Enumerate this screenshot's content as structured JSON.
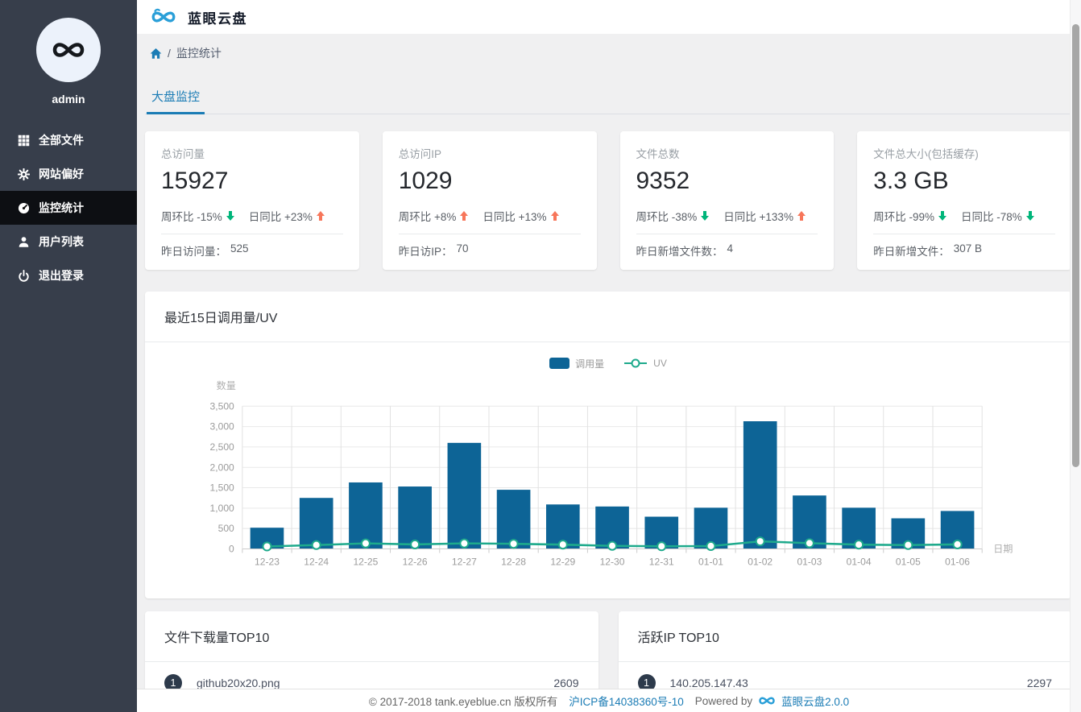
{
  "app": {
    "title": "蓝眼云盘",
    "username": "admin"
  },
  "sidebar": {
    "items": [
      {
        "label": "全部文件",
        "icon": "grid-icon",
        "active": false
      },
      {
        "label": "网站偏好",
        "icon": "gear-icon",
        "active": false
      },
      {
        "label": "监控统计",
        "icon": "dashboard-icon",
        "active": true
      },
      {
        "label": "用户列表",
        "icon": "user-icon",
        "active": false
      },
      {
        "label": "退出登录",
        "icon": "power-icon",
        "active": false
      }
    ]
  },
  "breadcrumb": {
    "separator": "/",
    "current": "监控统计"
  },
  "tabs": [
    {
      "label": "大盘监控",
      "active": true
    }
  ],
  "stat_cards": [
    {
      "label": "总访问量",
      "value": "15927",
      "wow": {
        "label": "周环比",
        "value": "-15%",
        "dir": "down"
      },
      "dod": {
        "label": "日同比",
        "value": "+23%",
        "dir": "up"
      },
      "footer_label": "昨日访问量：",
      "footer_value": "525"
    },
    {
      "label": "总访问IP",
      "value": "1029",
      "wow": {
        "label": "周环比",
        "value": "+8%",
        "dir": "up"
      },
      "dod": {
        "label": "日同比",
        "value": "+13%",
        "dir": "up"
      },
      "footer_label": "昨日访IP：",
      "footer_value": "70"
    },
    {
      "label": "文件总数",
      "value": "9352",
      "wow": {
        "label": "周环比",
        "value": "-38%",
        "dir": "down"
      },
      "dod": {
        "label": "日同比",
        "value": "+133%",
        "dir": "up"
      },
      "footer_label": "昨日新增文件数：",
      "footer_value": "4"
    },
    {
      "label": "文件总大小(包括缓存)",
      "value": "3.3 GB",
      "wow": {
        "label": "周环比",
        "value": "-99%",
        "dir": "down"
      },
      "dod": {
        "label": "日同比",
        "value": "-78%",
        "dir": "down"
      },
      "footer_label": "昨日新增文件：",
      "footer_value": "307 B"
    }
  ],
  "chart_data": {
    "type": "bar",
    "title": "最近15日调用量/UV",
    "categories": [
      "12-23",
      "12-24",
      "12-25",
      "12-26",
      "12-27",
      "12-28",
      "12-29",
      "12-30",
      "12-31",
      "01-01",
      "01-02",
      "01-03",
      "01-04",
      "01-05",
      "01-06"
    ],
    "series": [
      {
        "name": "调用量",
        "type": "bar",
        "color": "#0d6496",
        "values": [
          520,
          1250,
          1630,
          1530,
          2600,
          1450,
          1090,
          1040,
          790,
          1010,
          3130,
          1310,
          1010,
          750,
          930
        ]
      },
      {
        "name": "UV",
        "type": "line",
        "color": "#1eaa8c",
        "values": [
          60,
          95,
          135,
          110,
          135,
          125,
          105,
          75,
          65,
          70,
          185,
          140,
          105,
          95,
          110
        ]
      }
    ],
    "xlabel": "日期",
    "ylabel": "数量",
    "ylim": [
      0,
      3500
    ],
    "ytick_step": 500,
    "grid": true,
    "legend_position": "top-center"
  },
  "top_lists": [
    {
      "title": "文件下载量TOP10",
      "rows": [
        {
          "rank": "1",
          "label": "github20x20.png",
          "value": "2609"
        }
      ]
    },
    {
      "title": "活跃IP TOP10",
      "rows": [
        {
          "rank": "1",
          "label": "140.205.147.43",
          "value": "2297"
        }
      ]
    }
  ],
  "footer": {
    "copyright": "© 2017-2018 tank.eyeblue.cn 版权所有",
    "icp": "沪ICP备14038360号-10",
    "powered_by": "Powered by",
    "product": "蓝眼云盘2.0.0"
  },
  "colors": {
    "accent": "#1b7cb5",
    "bar": "#0d6496",
    "line": "#1eaa8c",
    "up": "#f7765a",
    "down": "#00b57a",
    "sidebar_bg": "#373e4b",
    "sidebar_active_bg": "#0d0f13",
    "badge_bg": "#2d3a4b"
  }
}
